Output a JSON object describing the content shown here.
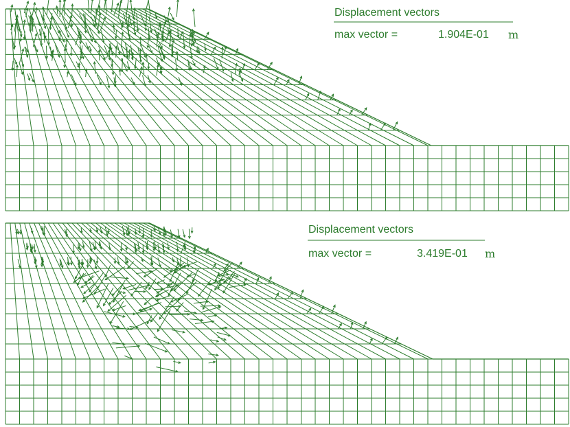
{
  "colors": {
    "mesh": "#2e7d2e",
    "vector": "#2e7d2e",
    "text": "#2e7d2e",
    "background": "#ffffff"
  },
  "panels": [
    {
      "id": "top",
      "title": "Displacement vectors",
      "max_label": "max vector =",
      "max_value": "1.904E-01",
      "unit": "m",
      "pattern": "shallow-surface"
    },
    {
      "id": "bottom",
      "title": "Displacement vectors",
      "max_label": "max vector =",
      "max_value": "3.419E-01",
      "unit": "m",
      "pattern": "deep-seated"
    }
  ]
}
